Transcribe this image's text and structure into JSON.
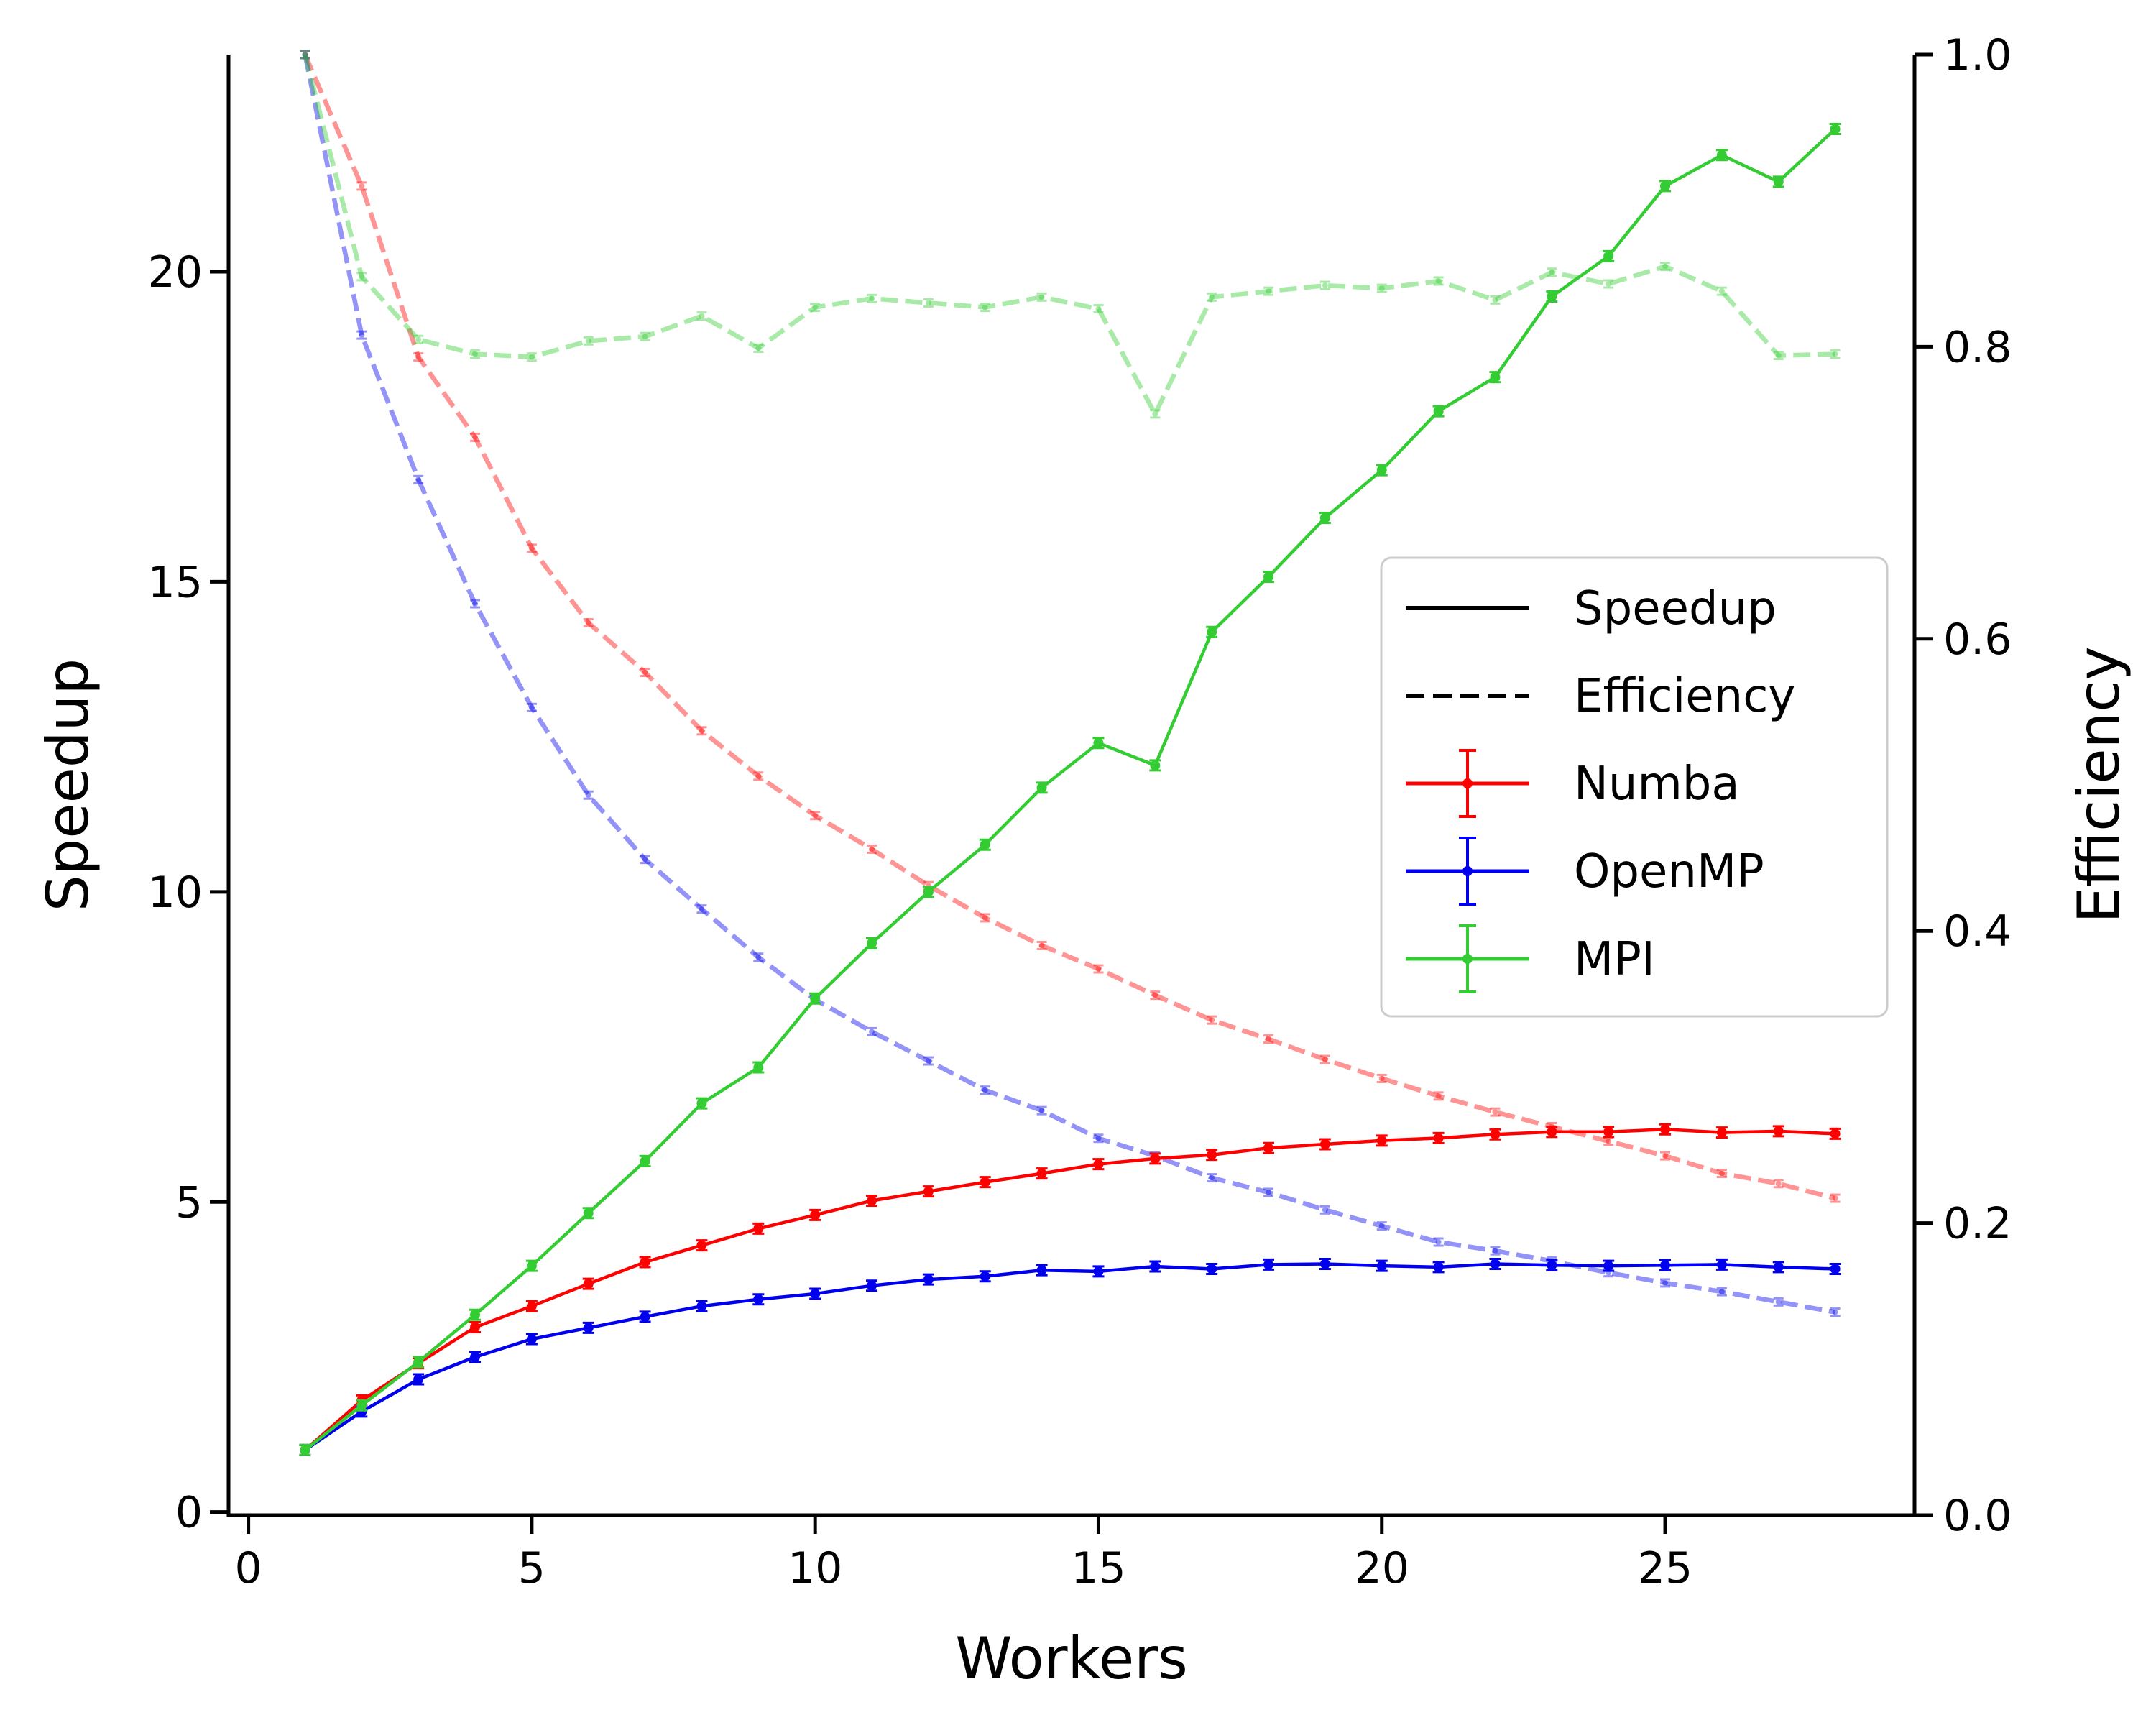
{
  "chart_data": {
    "type": "line",
    "xlabel": "Workers",
    "ylabel_left": "Speedup",
    "ylabel_right": "Efficiency",
    "xlim": [
      -0.35,
      29.4
    ],
    "ylim_left": [
      -0.05,
      23.5
    ],
    "ylim_right": [
      0.0,
      1.0
    ],
    "xticks": [
      0,
      5,
      10,
      15,
      20,
      25
    ],
    "yticks_left": [
      0,
      5,
      10,
      15,
      20
    ],
    "yticks_right": [
      0.0,
      0.2,
      0.4,
      0.6,
      0.8,
      1.0
    ],
    "ytick_labels_right": [
      "0.0",
      "0.2",
      "0.4",
      "0.6",
      "0.8",
      "1.0"
    ],
    "grid": false,
    "legend_placement": "center-right",
    "legend": {
      "styles": [
        {
          "label": "Speedup",
          "linestyle": "solid"
        },
        {
          "label": "Efficiency",
          "linestyle": "dashed"
        }
      ]
    },
    "x": [
      1,
      2,
      3,
      4,
      5,
      6,
      7,
      8,
      9,
      10,
      11,
      12,
      13,
      14,
      15,
      16,
      17,
      18,
      19,
      20,
      21,
      22,
      23,
      24,
      25,
      26,
      27,
      28
    ],
    "series": [
      {
        "name": "Numba",
        "color": "#ff0000",
        "speedup": [
          1.0,
          1.8,
          2.4,
          2.98,
          3.32,
          3.68,
          4.03,
          4.3,
          4.57,
          4.79,
          5.02,
          5.17,
          5.32,
          5.46,
          5.61,
          5.7,
          5.76,
          5.87,
          5.93,
          5.99,
          6.03,
          6.09,
          6.13,
          6.13,
          6.17,
          6.12,
          6.14,
          6.1
        ],
        "efficiency": [
          1.0,
          0.91,
          0.793,
          0.738,
          0.662,
          0.611,
          0.577,
          0.537,
          0.506,
          0.479,
          0.456,
          0.431,
          0.409,
          0.39,
          0.374,
          0.356,
          0.339,
          0.326,
          0.312,
          0.299,
          0.287,
          0.276,
          0.266,
          0.256,
          0.246,
          0.234,
          0.227,
          0.217
        ]
      },
      {
        "name": "OpenMP",
        "color": "#0000ee",
        "speedup": [
          1.0,
          1.62,
          2.14,
          2.5,
          2.79,
          2.97,
          3.15,
          3.32,
          3.43,
          3.52,
          3.65,
          3.75,
          3.8,
          3.9,
          3.88,
          3.96,
          3.92,
          3.99,
          4.0,
          3.97,
          3.95,
          4.0,
          3.98,
          3.97,
          3.98,
          3.99,
          3.95,
          3.92
        ],
        "efficiency": [
          1.0,
          0.808,
          0.709,
          0.624,
          0.553,
          0.493,
          0.449,
          0.415,
          0.382,
          0.353,
          0.331,
          0.311,
          0.291,
          0.277,
          0.258,
          0.246,
          0.231,
          0.221,
          0.209,
          0.198,
          0.187,
          0.181,
          0.174,
          0.166,
          0.159,
          0.153,
          0.146,
          0.139
        ]
      },
      {
        "name": "MPI",
        "color": "#33cc33",
        "speedup": [
          1.0,
          1.72,
          2.42,
          3.18,
          3.97,
          4.82,
          5.66,
          6.59,
          7.17,
          8.28,
          9.17,
          10.0,
          10.76,
          11.68,
          12.4,
          12.04,
          14.19,
          15.08,
          16.03,
          16.8,
          17.75,
          18.3,
          19.6,
          20.25,
          21.38,
          21.88,
          21.45,
          22.3
        ],
        "efficiency": [
          1.0,
          0.848,
          0.805,
          0.795,
          0.793,
          0.804,
          0.807,
          0.821,
          0.799,
          0.827,
          0.833,
          0.83,
          0.827,
          0.834,
          0.826,
          0.754,
          0.834,
          0.838,
          0.842,
          0.84,
          0.845,
          0.832,
          0.851,
          0.843,
          0.855,
          0.838,
          0.794,
          0.795
        ]
      }
    ]
  }
}
